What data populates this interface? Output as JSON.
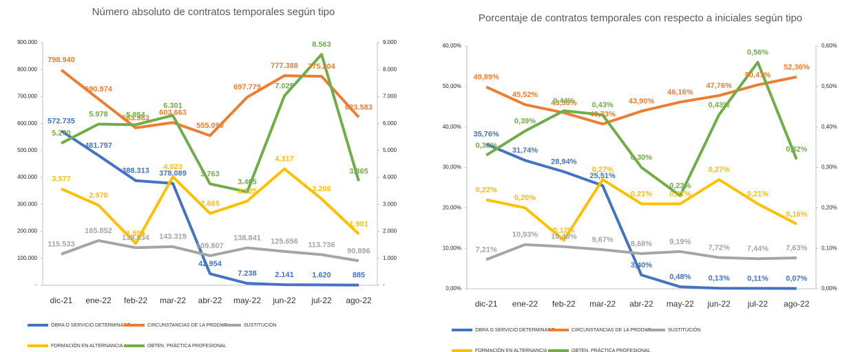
{
  "chart_data": [
    {
      "type": "line",
      "title": "Número absoluto de contratos temporales según tipo",
      "categories": [
        "dic-21",
        "ene-22",
        "feb-22",
        "mar-22",
        "abr-22",
        "may-22",
        "jun-22",
        "jul-22",
        "ago-22"
      ],
      "ylim": [
        0,
        900000
      ],
      "yticks": [
        {
          "value": 0,
          "label": "-"
        },
        {
          "value": 100000,
          "label": "100.000"
        },
        {
          "value": 200000,
          "label": "200.000"
        },
        {
          "value": 300000,
          "label": "300.000"
        },
        {
          "value": 400000,
          "label": "400.000"
        },
        {
          "value": 500000,
          "label": "500.000"
        },
        {
          "value": 600000,
          "label": "600.000"
        },
        {
          "value": 700000,
          "label": "700.000"
        },
        {
          "value": 800000,
          "label": "800.000"
        },
        {
          "value": 900000,
          "label": "900.000"
        }
      ],
      "y2lim": [
        0,
        9000
      ],
      "y2ticks": [
        {
          "value": 0,
          "label": "-"
        },
        {
          "value": 1000,
          "label": "1.000"
        },
        {
          "value": 2000,
          "label": "2.000"
        },
        {
          "value": 3000,
          "label": "3.000"
        },
        {
          "value": 4000,
          "label": "4.000"
        },
        {
          "value": 5000,
          "label": "5.000"
        },
        {
          "value": 6000,
          "label": "6.000"
        },
        {
          "value": 7000,
          "label": "7.000"
        },
        {
          "value": 8000,
          "label": "8.000"
        },
        {
          "value": 9000,
          "label": "9.000"
        }
      ],
      "series": [
        {
          "name": "OBRA O SERVICIO DETERMINADO",
          "color": "#4472c4",
          "values": [
            572735,
            481797,
            388313,
            378089,
            42954,
            7238,
            2141,
            1620,
            885
          ],
          "value_labels": [
            "572.735",
            "481.797",
            "388.313",
            "378.089",
            "42.954",
            "7.238",
            "2.141",
            "1.620",
            "885"
          ]
        },
        {
          "name": "CIRCUNSTANCIAS DE LA PRODUC.",
          "color": "#ed7d31",
          "values": [
            798940,
            690974,
            583983,
            603663,
            555099,
            697779,
            777388,
            775204,
            623583
          ],
          "value_labels": [
            "798.940",
            "690.974",
            "583.983",
            "603.663",
            "555.099",
            "697.779",
            "777.388",
            "775.204",
            "623.583"
          ]
        },
        {
          "name": "SUSTITUCIÓN",
          "color": "#a5a5a5",
          "values": [
            115533,
            165852,
            139534,
            143319,
            109807,
            138841,
            125656,
            113736,
            90896
          ],
          "value_labels": [
            "115.533",
            "165.852",
            "139.534",
            "143.319",
            "109.807",
            "138.841",
            "125.656",
            "113.736",
            "90.896"
          ]
        },
        {
          "name": "FORMACIÓN EN ALTERNANCIA",
          "color": "#ffc000",
          "axis": "y2",
          "values": [
            3577,
            2970,
            1554,
            4023,
            2665,
            3125,
            4317,
            3206,
            1901
          ],
          "value_labels": [
            "3.577",
            "2.970",
            "1.554",
            "4.023",
            "2.665",
            "3.125",
            "4.317",
            "3.206",
            "1.901"
          ]
        },
        {
          "name": "OBTEN. PRÁCTICA PROFESIONAL",
          "color": "#70ad47",
          "axis": "y2",
          "values": [
            5270,
            5978,
            5954,
            6301,
            3763,
            3465,
            7025,
            8563,
            3865
          ],
          "value_labels": [
            "5.270",
            "5.978",
            "5.954",
            "6.301",
            "3.763",
            "3.465",
            "7.025",
            "8.563",
            "3.865"
          ]
        }
      ]
    },
    {
      "type": "line",
      "title": "Porcentaje de contratos temporales con respecto a iniciales según tipo",
      "categories": [
        "dic-21",
        "ene-22",
        "feb-22",
        "mar-22",
        "abr-22",
        "may-22",
        "jun-22",
        "jul-22",
        "ago-22"
      ],
      "ylim": [
        0,
        60
      ],
      "yticks": [
        {
          "value": 0,
          "label": "0,00%"
        },
        {
          "value": 10,
          "label": "10,00%"
        },
        {
          "value": 20,
          "label": "20,00%"
        },
        {
          "value": 30,
          "label": "30,00%"
        },
        {
          "value": 40,
          "label": "40,00%"
        },
        {
          "value": 50,
          "label": "50,00%"
        },
        {
          "value": 60,
          "label": "60,00%"
        }
      ],
      "y2lim": [
        0,
        0.6
      ],
      "y2ticks": [
        {
          "value": 0,
          "label": "0,00%"
        },
        {
          "value": 0.1,
          "label": "0,10%"
        },
        {
          "value": 0.2,
          "label": "0,20%"
        },
        {
          "value": 0.3,
          "label": "0,30%"
        },
        {
          "value": 0.4,
          "label": "0,40%"
        },
        {
          "value": 0.5,
          "label": "0,50%"
        },
        {
          "value": 0.6,
          "label": "0,60%"
        }
      ],
      "series": [
        {
          "name": "OBRA O SERVICIO DETERMINADO",
          "color": "#4472c4",
          "values": [
            35.76,
            31.74,
            28.94,
            25.51,
            3.4,
            0.48,
            0.13,
            0.11,
            0.07
          ],
          "value_labels": [
            "35,76%",
            "31,74%",
            "28,94%",
            "25,51%",
            "3,40%",
            "0,48%",
            "0,13%",
            "0,11%",
            "0,07%"
          ]
        },
        {
          "name": "CIRCUNSTANCIAS DE LA PRODUC.",
          "color": "#ed7d31",
          "values": [
            49.89,
            45.52,
            43.53,
            40.73,
            43.9,
            46.16,
            47.76,
            50.41,
            52.36
          ],
          "value_labels": [
            "49,89%",
            "45,52%",
            "43,53%",
            "40,73%",
            "43,90%",
            "46,16%",
            "47,76%",
            "50,41%",
            "52,36%"
          ]
        },
        {
          "name": "SUSTITUCIÓN",
          "color": "#a5a5a5",
          "values": [
            7.21,
            10.93,
            10.4,
            9.67,
            8.68,
            9.19,
            7.72,
            7.44,
            7.63
          ],
          "value_labels": [
            "7,21%",
            "10,93%",
            "10,40%",
            "9,67%",
            "8,68%",
            "9,19%",
            "7,72%",
            "7,44%",
            "7,63%"
          ]
        },
        {
          "name": "FORMACIÓN EN ALTERNANCIA",
          "color": "#ffc000",
          "axis": "y2",
          "values": [
            0.22,
            0.2,
            0.12,
            0.27,
            0.21,
            0.21,
            0.27,
            0.21,
            0.16
          ],
          "value_labels": [
            "0,22%",
            "0,20%",
            "0,12%",
            "0,27%",
            "0,21%",
            "0,21%",
            "0,27%",
            "0,21%",
            "0,16%"
          ]
        },
        {
          "name": "OBTEN. PRÁCTICA PROFESIONAL",
          "color": "#70ad47",
          "axis": "y2",
          "values": [
            0.33,
            0.39,
            0.44,
            0.43,
            0.3,
            0.23,
            0.43,
            0.56,
            0.32
          ],
          "value_labels": [
            "0,33%",
            "0,39%",
            "0,44%",
            "0,43%",
            "0,30%",
            "0,23%",
            "0,43%",
            "0,56%",
            "0,32%"
          ]
        }
      ]
    }
  ]
}
